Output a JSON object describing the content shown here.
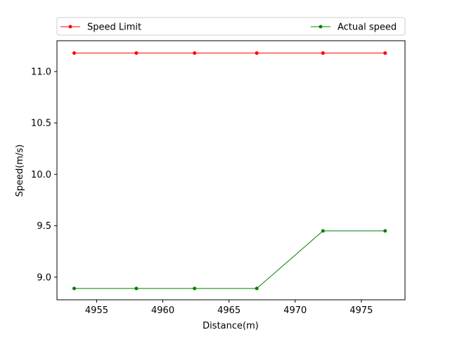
{
  "chart_data": {
    "type": "line",
    "title": "",
    "xlabel": "Distance(m)",
    "ylabel": "Speed(m/s)",
    "xlim": [
      4952.0,
      4978.3
    ],
    "ylim": [
      8.78,
      11.3
    ],
    "xticks": [
      4955,
      4960,
      4965,
      4970,
      4975
    ],
    "yticks": [
      9.0,
      9.5,
      10.0,
      10.5,
      11.0
    ],
    "xtick_labels": [
      "4955",
      "4960",
      "4965",
      "4970",
      "4975"
    ],
    "ytick_labels": [
      "9.0",
      "9.5",
      "10.0",
      "10.5",
      "11.0"
    ],
    "grid": false,
    "legend_placement": "top, outside plot, expanded across",
    "series": [
      {
        "name": "Speed Limit",
        "color": "#ff0000",
        "marker": "circle",
        "x": [
          4953.3,
          4958.0,
          4962.4,
          4967.1,
          4972.1,
          4976.8
        ],
        "y": [
          11.18,
          11.18,
          11.18,
          11.18,
          11.18,
          11.18
        ]
      },
      {
        "name": "Actual speed",
        "color": "#008000",
        "marker": "circle",
        "x": [
          4953.3,
          4958.0,
          4962.4,
          4967.1,
          4972.1,
          4976.8
        ],
        "y": [
          8.89,
          8.89,
          8.89,
          8.89,
          9.45,
          9.45
        ]
      }
    ]
  }
}
